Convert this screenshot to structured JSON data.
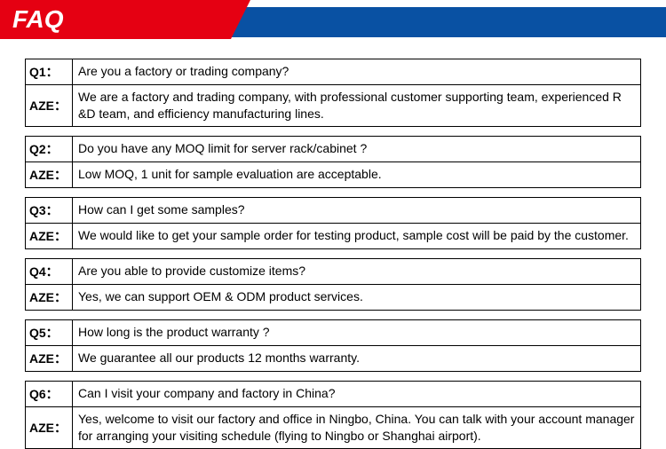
{
  "header": {
    "title": "FAQ",
    "red_color": "#e50012",
    "blue_color": "#0951a3",
    "title_color": "#ffffff"
  },
  "faq": [
    {
      "q_label": "Q1：",
      "q_text": "Are you a factory or trading company?",
      "a_label": "AZE：",
      "a_text": " We are a factory and trading company, with professional customer supporting team, experienced R &D team, and efficiency manufacturing lines."
    },
    {
      "q_label": "Q2：",
      "q_text": "Do you have any MOQ limit for server rack/cabinet ?",
      "a_label": "AZE：",
      "a_text": " Low MOQ, 1 unit for sample evaluation are acceptable."
    },
    {
      "q_label": "Q3：",
      "q_text": " How can I get some samples?",
      "a_label": "AZE：",
      "a_text": " We would like to get your sample order for testing product, sample cost will be paid by the customer."
    },
    {
      "q_label": "Q4：",
      "q_text": " Are you able to provide customize items?",
      "a_label": "AZE：",
      "a_text": " Yes, we can support OEM & ODM product services."
    },
    {
      "q_label": "Q5：",
      "q_text": " How long is the product warranty ?",
      "a_label": "AZE：",
      "a_text": " We guarantee all our products 12 months warranty."
    },
    {
      "q_label": "Q6：",
      "q_text": " Can I visit your company and factory in China?",
      "a_label": "AZE：",
      "a_text": " Yes, welcome to visit our factory and office in Ningbo, China. You can talk with your account manager for arranging your visiting schedule (flying to Ningbo or Shanghai airport)."
    }
  ],
  "styling": {
    "border_color": "#000000",
    "body_font_size": 14,
    "label_font_weight": "bold",
    "background": "#ffffff"
  }
}
